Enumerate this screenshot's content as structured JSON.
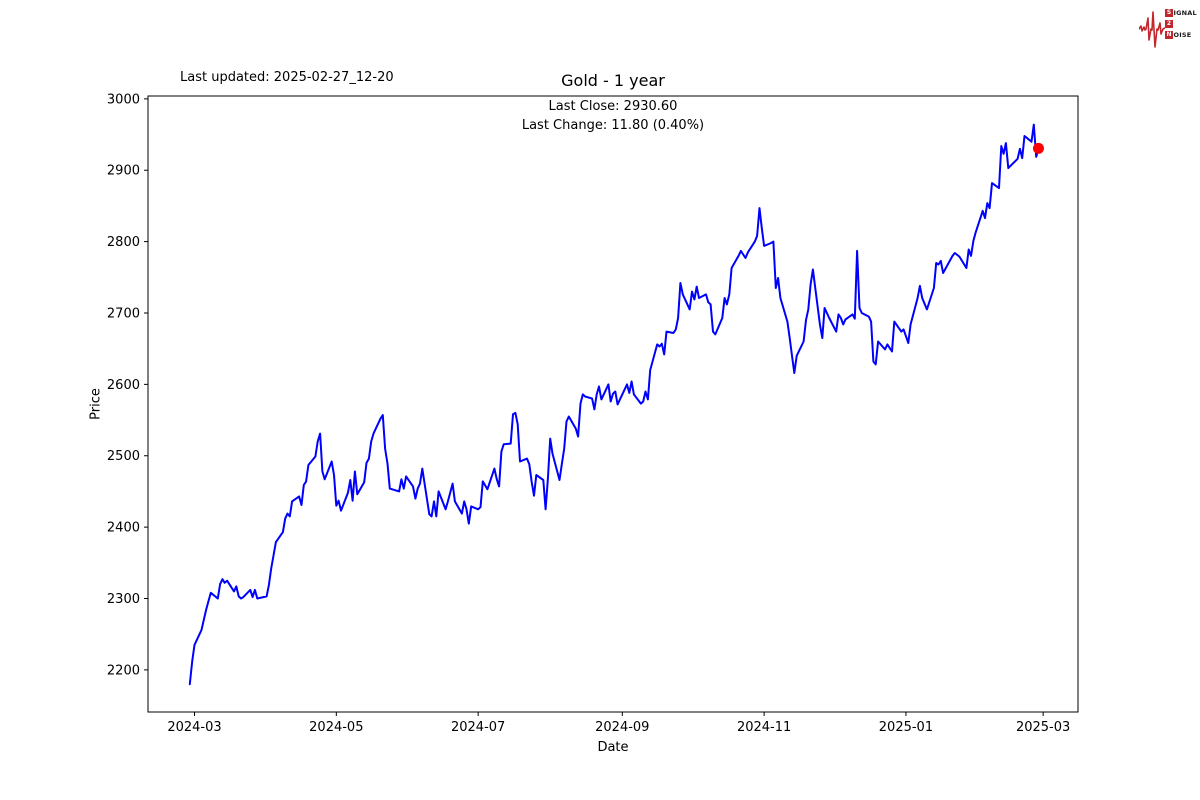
{
  "header": {
    "last_updated": "Last updated: 2025-02-27_12-20",
    "title": "Gold - 1 year",
    "annotation_line1": "Last Close: 2930.60",
    "annotation_line2": "Last Change: 11.80 (0.40%)"
  },
  "axes": {
    "xlabel": "Date",
    "ylabel": "Price"
  },
  "logo": {
    "color": "#c2272d",
    "rows": [
      {
        "badge": "S",
        "rest": "IGNAL"
      },
      {
        "badge": "2",
        "rest": ""
      },
      {
        "badge": "N",
        "rest": "OISE"
      }
    ]
  },
  "chart_data": {
    "type": "line",
    "title": "Gold - 1 year",
    "xlabel": "Date",
    "ylabel": "Price",
    "grid": false,
    "line_color": "#0000ff",
    "line_width": 2,
    "background": "#ffffff",
    "spine_color": "#000000",
    "last_close": 2930.6,
    "last_change": 11.8,
    "last_change_pct": 0.4,
    "marker": {
      "date": "2025-02-27",
      "value": 2930.6,
      "color": "#ff0000",
      "radius": 5.5
    },
    "xlim": [
      "2024-02-10",
      "2025-03-16"
    ],
    "ylim": [
      2141,
      3004
    ],
    "yticks": [
      2200,
      2300,
      2400,
      2500,
      2600,
      2700,
      2800,
      2900,
      3000
    ],
    "xticks": [
      {
        "date": "2024-03-01",
        "label": "2024-03"
      },
      {
        "date": "2024-05-01",
        "label": "2024-05"
      },
      {
        "date": "2024-07-01",
        "label": "2024-07"
      },
      {
        "date": "2024-09-01",
        "label": "2024-09"
      },
      {
        "date": "2024-11-01",
        "label": "2024-11"
      },
      {
        "date": "2025-01-01",
        "label": "2025-01"
      },
      {
        "date": "2025-03-01",
        "label": "2025-03"
      }
    ],
    "series": [
      {
        "name": "Gold",
        "points": [
          [
            "2024-02-28",
            2180
          ],
          [
            "2024-02-29",
            2212
          ],
          [
            "2024-03-01",
            2235
          ],
          [
            "2024-03-04",
            2256
          ],
          [
            "2024-03-05",
            2270
          ],
          [
            "2024-03-06",
            2284
          ],
          [
            "2024-03-07",
            2296
          ],
          [
            "2024-03-08",
            2308
          ],
          [
            "2024-03-11",
            2300
          ],
          [
            "2024-03-12",
            2320
          ],
          [
            "2024-03-13",
            2327
          ],
          [
            "2024-03-14",
            2322
          ],
          [
            "2024-03-15",
            2325
          ],
          [
            "2024-03-18",
            2310
          ],
          [
            "2024-03-19",
            2317
          ],
          [
            "2024-03-20",
            2303
          ],
          [
            "2024-03-21",
            2300
          ],
          [
            "2024-03-22",
            2302
          ],
          [
            "2024-03-25",
            2312
          ],
          [
            "2024-03-26",
            2302
          ],
          [
            "2024-03-27",
            2312
          ],
          [
            "2024-03-28",
            2300
          ],
          [
            "2024-04-01",
            2303
          ],
          [
            "2024-04-02",
            2319
          ],
          [
            "2024-04-03",
            2342
          ],
          [
            "2024-04-04",
            2361
          ],
          [
            "2024-04-05",
            2379
          ],
          [
            "2024-04-08",
            2393
          ],
          [
            "2024-04-09",
            2412
          ],
          [
            "2024-04-10",
            2419
          ],
          [
            "2024-04-11",
            2415
          ],
          [
            "2024-04-12",
            2436
          ],
          [
            "2024-04-15",
            2443
          ],
          [
            "2024-04-16",
            2431
          ],
          [
            "2024-04-17",
            2459
          ],
          [
            "2024-04-18",
            2464
          ],
          [
            "2024-04-19",
            2487
          ],
          [
            "2024-04-22",
            2499
          ],
          [
            "2024-04-23",
            2520
          ],
          [
            "2024-04-24",
            2531
          ],
          [
            "2024-04-25",
            2478
          ],
          [
            "2024-04-26",
            2467
          ],
          [
            "2024-04-29",
            2492
          ],
          [
            "2024-04-30",
            2473
          ],
          [
            "2024-05-01",
            2430
          ],
          [
            "2024-05-02",
            2437
          ],
          [
            "2024-05-03",
            2423
          ],
          [
            "2024-05-06",
            2448
          ],
          [
            "2024-05-07",
            2466
          ],
          [
            "2024-05-08",
            2437
          ],
          [
            "2024-05-09",
            2478
          ],
          [
            "2024-05-10",
            2446
          ],
          [
            "2024-05-13",
            2463
          ],
          [
            "2024-05-14",
            2490
          ],
          [
            "2024-05-15",
            2496
          ],
          [
            "2024-05-16",
            2520
          ],
          [
            "2024-05-17",
            2531
          ],
          [
            "2024-05-20",
            2552
          ],
          [
            "2024-05-21",
            2557
          ],
          [
            "2024-05-22",
            2510
          ],
          [
            "2024-05-23",
            2489
          ],
          [
            "2024-05-24",
            2454
          ],
          [
            "2024-05-28",
            2450
          ],
          [
            "2024-05-29",
            2467
          ],
          [
            "2024-05-30",
            2454
          ],
          [
            "2024-05-31",
            2471
          ],
          [
            "2024-06-03",
            2457
          ],
          [
            "2024-06-04",
            2440
          ],
          [
            "2024-06-05",
            2454
          ],
          [
            "2024-06-06",
            2461
          ],
          [
            "2024-06-07",
            2482
          ],
          [
            "2024-06-10",
            2418
          ],
          [
            "2024-06-11",
            2415
          ],
          [
            "2024-06-12",
            2436
          ],
          [
            "2024-06-13",
            2415
          ],
          [
            "2024-06-14",
            2450
          ],
          [
            "2024-06-17",
            2425
          ],
          [
            "2024-06-18",
            2436
          ],
          [
            "2024-06-20",
            2461
          ],
          [
            "2024-06-21",
            2436
          ],
          [
            "2024-06-24",
            2419
          ],
          [
            "2024-06-25",
            2436
          ],
          [
            "2024-06-26",
            2425
          ],
          [
            "2024-06-27",
            2405
          ],
          [
            "2024-06-28",
            2429
          ],
          [
            "2024-07-01",
            2425
          ],
          [
            "2024-07-02",
            2428
          ],
          [
            "2024-07-03",
            2464
          ],
          [
            "2024-07-05",
            2453
          ],
          [
            "2024-07-08",
            2482
          ],
          [
            "2024-07-09",
            2467
          ],
          [
            "2024-07-10",
            2457
          ],
          [
            "2024-07-11",
            2506
          ],
          [
            "2024-07-12",
            2516
          ],
          [
            "2024-07-15",
            2517
          ],
          [
            "2024-07-16",
            2558
          ],
          [
            "2024-07-17",
            2560
          ],
          [
            "2024-07-18",
            2544
          ],
          [
            "2024-07-19",
            2492
          ],
          [
            "2024-07-22",
            2496
          ],
          [
            "2024-07-23",
            2488
          ],
          [
            "2024-07-24",
            2464
          ],
          [
            "2024-07-25",
            2444
          ],
          [
            "2024-07-26",
            2473
          ],
          [
            "2024-07-29",
            2466
          ],
          [
            "2024-07-30",
            2425
          ],
          [
            "2024-07-31",
            2468
          ],
          [
            "2024-08-01",
            2524
          ],
          [
            "2024-08-02",
            2503
          ],
          [
            "2024-08-05",
            2466
          ],
          [
            "2024-08-06",
            2489
          ],
          [
            "2024-08-07",
            2510
          ],
          [
            "2024-08-08",
            2548
          ],
          [
            "2024-08-09",
            2555
          ],
          [
            "2024-08-12",
            2538
          ],
          [
            "2024-08-13",
            2527
          ],
          [
            "2024-08-14",
            2573
          ],
          [
            "2024-08-15",
            2586
          ],
          [
            "2024-08-16",
            2583
          ],
          [
            "2024-08-19",
            2580
          ],
          [
            "2024-08-20",
            2565
          ],
          [
            "2024-08-21",
            2586
          ],
          [
            "2024-08-22",
            2597
          ],
          [
            "2024-08-23",
            2579
          ],
          [
            "2024-08-26",
            2600
          ],
          [
            "2024-08-27",
            2576
          ],
          [
            "2024-08-28",
            2587
          ],
          [
            "2024-08-29",
            2590
          ],
          [
            "2024-08-30",
            2572
          ],
          [
            "2024-09-03",
            2600
          ],
          [
            "2024-09-04",
            2588
          ],
          [
            "2024-09-05",
            2604
          ],
          [
            "2024-09-06",
            2586
          ],
          [
            "2024-09-09",
            2573
          ],
          [
            "2024-09-10",
            2576
          ],
          [
            "2024-09-11",
            2590
          ],
          [
            "2024-09-12",
            2579
          ],
          [
            "2024-09-13",
            2620
          ],
          [
            "2024-09-16",
            2656
          ],
          [
            "2024-09-17",
            2653
          ],
          [
            "2024-09-18",
            2657
          ],
          [
            "2024-09-19",
            2642
          ],
          [
            "2024-09-20",
            2674
          ],
          [
            "2024-09-23",
            2672
          ],
          [
            "2024-09-24",
            2677
          ],
          [
            "2024-09-25",
            2693
          ],
          [
            "2024-09-26",
            2742
          ],
          [
            "2024-09-27",
            2726
          ],
          [
            "2024-09-30",
            2705
          ],
          [
            "2024-10-01",
            2730
          ],
          [
            "2024-10-02",
            2719
          ],
          [
            "2024-10-03",
            2737
          ],
          [
            "2024-10-04",
            2721
          ],
          [
            "2024-10-07",
            2726
          ],
          [
            "2024-10-08",
            2715
          ],
          [
            "2024-10-09",
            2712
          ],
          [
            "2024-10-10",
            2674
          ],
          [
            "2024-10-11",
            2670
          ],
          [
            "2024-10-14",
            2693
          ],
          [
            "2024-10-15",
            2721
          ],
          [
            "2024-10-16",
            2712
          ],
          [
            "2024-10-17",
            2726
          ],
          [
            "2024-10-18",
            2763
          ],
          [
            "2024-10-21",
            2780
          ],
          [
            "2024-10-22",
            2787
          ],
          [
            "2024-10-23",
            2782
          ],
          [
            "2024-10-24",
            2777
          ],
          [
            "2024-10-25",
            2785
          ],
          [
            "2024-10-28",
            2800
          ],
          [
            "2024-10-29",
            2808
          ],
          [
            "2024-10-30",
            2847
          ],
          [
            "2024-10-31",
            2819
          ],
          [
            "2024-11-01",
            2794
          ],
          [
            "2024-11-04",
            2798
          ],
          [
            "2024-11-05",
            2800
          ],
          [
            "2024-11-06",
            2735
          ],
          [
            "2024-11-07",
            2749
          ],
          [
            "2024-11-08",
            2721
          ],
          [
            "2024-11-11",
            2688
          ],
          [
            "2024-11-12",
            2665
          ],
          [
            "2024-11-13",
            2640
          ],
          [
            "2024-11-14",
            2616
          ],
          [
            "2024-11-15",
            2640
          ],
          [
            "2024-11-18",
            2660
          ],
          [
            "2024-11-19",
            2690
          ],
          [
            "2024-11-20",
            2705
          ],
          [
            "2024-11-21",
            2740
          ],
          [
            "2024-11-22",
            2761
          ],
          [
            "2024-11-25",
            2684
          ],
          [
            "2024-11-26",
            2665
          ],
          [
            "2024-11-27",
            2707
          ],
          [
            "2024-11-29",
            2693
          ],
          [
            "2024-12-02",
            2674
          ],
          [
            "2024-12-03",
            2698
          ],
          [
            "2024-12-04",
            2693
          ],
          [
            "2024-12-05",
            2684
          ],
          [
            "2024-12-06",
            2691
          ],
          [
            "2024-12-09",
            2698
          ],
          [
            "2024-12-10",
            2692
          ],
          [
            "2024-12-11",
            2787
          ],
          [
            "2024-12-12",
            2707
          ],
          [
            "2024-12-13",
            2700
          ],
          [
            "2024-12-16",
            2695
          ],
          [
            "2024-12-17",
            2688
          ],
          [
            "2024-12-18",
            2632
          ],
          [
            "2024-12-19",
            2628
          ],
          [
            "2024-12-20",
            2660
          ],
          [
            "2024-12-23",
            2649
          ],
          [
            "2024-12-24",
            2656
          ],
          [
            "2024-12-26",
            2646
          ],
          [
            "2024-12-27",
            2688
          ],
          [
            "2024-12-30",
            2674
          ],
          [
            "2024-12-31",
            2677
          ],
          [
            "2025-01-02",
            2658
          ],
          [
            "2025-01-03",
            2684
          ],
          [
            "2025-01-06",
            2721
          ],
          [
            "2025-01-07",
            2738
          ],
          [
            "2025-01-08",
            2721
          ],
          [
            "2025-01-10",
            2705
          ],
          [
            "2025-01-13",
            2735
          ],
          [
            "2025-01-14",
            2770
          ],
          [
            "2025-01-15",
            2768
          ],
          [
            "2025-01-16",
            2773
          ],
          [
            "2025-01-17",
            2756
          ],
          [
            "2025-01-21",
            2780
          ],
          [
            "2025-01-22",
            2784
          ],
          [
            "2025-01-24",
            2779
          ],
          [
            "2025-01-27",
            2763
          ],
          [
            "2025-01-28",
            2789
          ],
          [
            "2025-01-29",
            2780
          ],
          [
            "2025-01-30",
            2801
          ],
          [
            "2025-01-31",
            2813
          ],
          [
            "2025-02-03",
            2843
          ],
          [
            "2025-02-04",
            2833
          ],
          [
            "2025-02-05",
            2854
          ],
          [
            "2025-02-06",
            2847
          ],
          [
            "2025-02-07",
            2882
          ],
          [
            "2025-02-10",
            2875
          ],
          [
            "2025-02-11",
            2934
          ],
          [
            "2025-02-12",
            2923
          ],
          [
            "2025-02-13",
            2938
          ],
          [
            "2025-02-14",
            2903
          ],
          [
            "2025-02-18",
            2916
          ],
          [
            "2025-02-19",
            2930
          ],
          [
            "2025-02-20",
            2917
          ],
          [
            "2025-02-21",
            2948
          ],
          [
            "2025-02-24",
            2940
          ],
          [
            "2025-02-25",
            2964
          ],
          [
            "2025-02-26",
            2918.8
          ],
          [
            "2025-02-27",
            2930.6
          ]
        ]
      }
    ]
  }
}
